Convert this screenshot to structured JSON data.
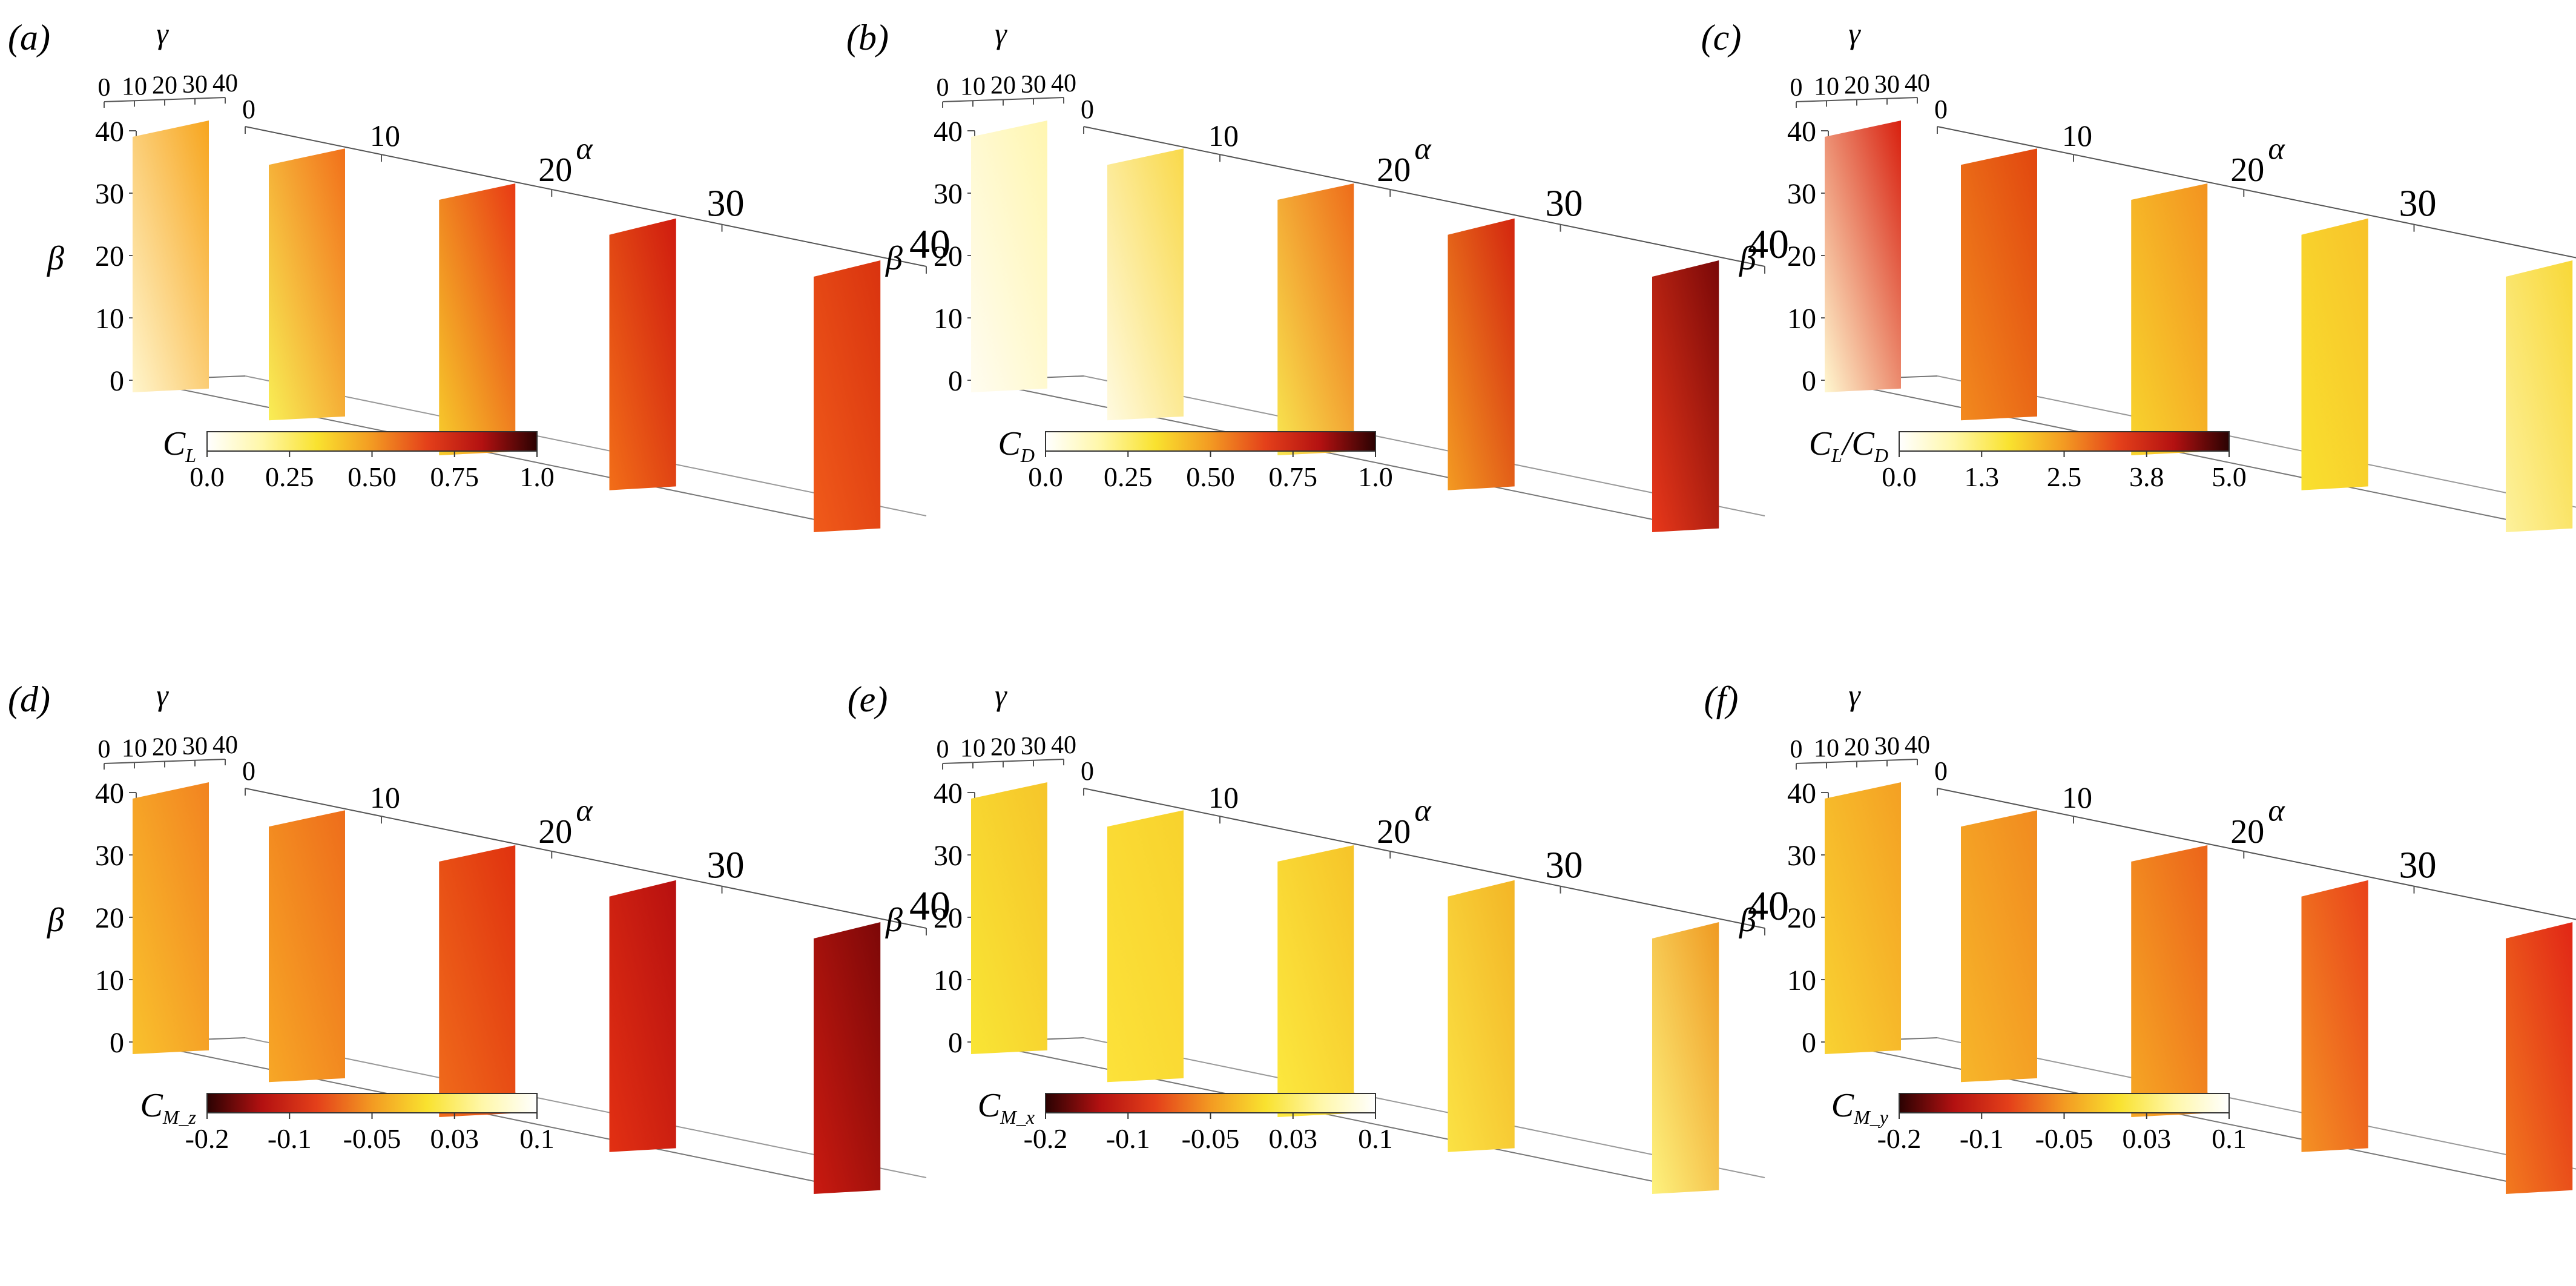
{
  "chart_data": [
    {
      "type": "heatmap",
      "panel_label": "(a)",
      "title": "",
      "gamma_axis": {
        "label": "γ",
        "ticks": [
          "0",
          "10",
          "20",
          "30",
          "40"
        ]
      },
      "alpha_axis": {
        "label": "α",
        "ticks": [
          "0",
          "10",
          "20",
          "30",
          "40"
        ]
      },
      "beta_axis": {
        "label": "β",
        "ticks": [
          "0",
          "10",
          "20",
          "30",
          "40"
        ]
      },
      "alpha_slices": [
        0,
        10,
        20,
        30,
        40
      ],
      "slice_gradient": [
        [
          "#fff5cc",
          "#f7a51e"
        ],
        [
          "#f8ee55",
          "#f2701a"
        ],
        [
          "#f7cd2c",
          "#e83a14"
        ],
        [
          "#f26e18",
          "#cf1b0f"
        ],
        [
          "#f05b1a",
          "#d9330f"
        ]
      ],
      "colorbar": {
        "label": "C",
        "label_sub": "L",
        "ticks": [
          "0.0",
          "0.25",
          "0.50",
          "0.75",
          "1.0"
        ],
        "range": [
          0,
          1.0
        ],
        "reversed": false
      },
      "ylim": [
        0,
        40
      ]
    },
    {
      "type": "heatmap",
      "panel_label": "(b)",
      "title": "",
      "gamma_axis": {
        "label": "γ",
        "ticks": [
          "0",
          "10",
          "20",
          "30",
          "40"
        ]
      },
      "alpha_axis": {
        "label": "α",
        "ticks": [
          "0",
          "10",
          "20",
          "30",
          "40"
        ]
      },
      "beta_axis": {
        "label": "β",
        "ticks": [
          "0",
          "10",
          "20",
          "30",
          "40"
        ]
      },
      "alpha_slices": [
        0,
        10,
        20,
        30,
        40
      ],
      "slice_gradient": [
        [
          "#fffcf0",
          "#fff6b0"
        ],
        [
          "#fffae0",
          "#f9d94a"
        ],
        [
          "#f8e650",
          "#ee6c1a"
        ],
        [
          "#f39a22",
          "#d3250f"
        ],
        [
          "#e8381a",
          "#7a0808"
        ]
      ],
      "colorbar": {
        "label": "C",
        "label_sub": "D",
        "ticks": [
          "0.0",
          "0.25",
          "0.50",
          "0.75",
          "1.0"
        ],
        "range": [
          0,
          1.0
        ],
        "reversed": false
      },
      "ylim": [
        0,
        40
      ]
    },
    {
      "type": "heatmap",
      "panel_label": "(c)",
      "title": "",
      "gamma_axis": {
        "label": "γ",
        "ticks": [
          "0",
          "10",
          "20",
          "30",
          "40"
        ]
      },
      "alpha_axis": {
        "label": "α",
        "ticks": [
          "0",
          "10",
          "20",
          "30",
          "40"
        ]
      },
      "beta_axis": {
        "label": "β",
        "ticks": [
          "0",
          "10",
          "20",
          "30",
          "40"
        ]
      },
      "alpha_slices": [
        0,
        10,
        20,
        30,
        40
      ],
      "slice_gradient": [
        [
          "#fff8d0",
          "#d8200f"
        ],
        [
          "#f28a1e",
          "#e1460f"
        ],
        [
          "#f8d42e",
          "#f39320"
        ],
        [
          "#f9e02f",
          "#f8c22a"
        ],
        [
          "#fdf19c",
          "#f8d838"
        ]
      ],
      "colorbar": {
        "label": "C",
        "label_sub": "L",
        "label2": "/C",
        "label2_sub": "D",
        "ticks": [
          "0.0",
          "1.3",
          "2.5",
          "3.8",
          "5.0"
        ],
        "range": [
          0,
          5.0
        ],
        "reversed": false
      },
      "ylim": [
        0,
        40
      ]
    },
    {
      "type": "heatmap",
      "panel_label": "(d)",
      "title": "",
      "gamma_axis": {
        "label": "γ",
        "ticks": [
          "0",
          "10",
          "20",
          "30",
          "40"
        ]
      },
      "alpha_axis": {
        "label": "α",
        "ticks": [
          "0",
          "10",
          "20",
          "30",
          "40"
        ]
      },
      "beta_axis": {
        "label": "β",
        "ticks": [
          "0",
          "10",
          "20",
          "30",
          "40"
        ]
      },
      "alpha_slices": [
        0,
        10,
        20,
        30,
        40
      ],
      "slice_gradient": [
        [
          "#f9c12d",
          "#f28320"
        ],
        [
          "#f7a726",
          "#ee6d1b"
        ],
        [
          "#f06c1b",
          "#e0320f"
        ],
        [
          "#e23012",
          "#b71010"
        ],
        [
          "#c91a10",
          "#7d0808"
        ]
      ],
      "colorbar": {
        "label": "C",
        "label_sub": "M_z",
        "ticks": [
          "-0.2",
          "-0.1",
          "-0.05",
          "0.03",
          "0.1"
        ],
        "range": [
          -0.2,
          0.1
        ],
        "reversed": true
      },
      "ylim": [
        0,
        40
      ]
    },
    {
      "type": "heatmap",
      "panel_label": "(e)",
      "title": "",
      "gamma_axis": {
        "label": "γ",
        "ticks": [
          "0",
          "10",
          "20",
          "30",
          "40"
        ]
      },
      "alpha_axis": {
        "label": "α",
        "ticks": [
          "0",
          "10",
          "20",
          "30",
          "40"
        ]
      },
      "beta_axis": {
        "label": "β",
        "ticks": [
          "0",
          "10",
          "20",
          "30",
          "40"
        ]
      },
      "alpha_slices": [
        0,
        10,
        20,
        30,
        40
      ],
      "slice_gradient": [
        [
          "#f9e535",
          "#f6c52a"
        ],
        [
          "#fce23a",
          "#f8d22d"
        ],
        [
          "#fce93f",
          "#f6c429"
        ],
        [
          "#fbe244",
          "#f3b526"
        ],
        [
          "#fdf27e",
          "#ef9a22"
        ]
      ],
      "colorbar": {
        "label": "C",
        "label_sub": "M_x",
        "ticks": [
          "-0.2",
          "-0.1",
          "-0.05",
          "0.03",
          "0.1"
        ],
        "range": [
          -0.2,
          0.1
        ],
        "reversed": true
      },
      "ylim": [
        0,
        40
      ]
    },
    {
      "type": "heatmap",
      "panel_label": "(f)",
      "title": "",
      "gamma_axis": {
        "label": "γ",
        "ticks": [
          "0",
          "10",
          "20",
          "30",
          "40"
        ]
      },
      "alpha_axis": {
        "label": "α",
        "ticks": [
          "0",
          "10",
          "20",
          "30",
          "40"
        ]
      },
      "beta_axis": {
        "label": "β",
        "ticks": [
          "0",
          "10",
          "20",
          "30",
          "40"
        ]
      },
      "alpha_slices": [
        0,
        10,
        20,
        30,
        40
      ],
      "slice_gradient": [
        [
          "#f9d232",
          "#f4a023"
        ],
        [
          "#f7b62a",
          "#f18a1f"
        ],
        [
          "#f6a825",
          "#ec641a"
        ],
        [
          "#f49224",
          "#e9421a"
        ],
        [
          "#f27a1f",
          "#e12616"
        ]
      ],
      "colorbar": {
        "label": "C",
        "label_sub": "M_y",
        "ticks": [
          "-0.2",
          "-0.1",
          "-0.05",
          "0.03",
          "0.1"
        ],
        "range": [
          -0.2,
          0.1
        ],
        "reversed": true
      },
      "ylim": [
        0,
        40
      ]
    }
  ],
  "colormap": {
    "hot_forward": [
      "#ffffff",
      "#fff7a8",
      "#f9e22f",
      "#f39a22",
      "#e4401a",
      "#b31111",
      "#2a0202"
    ],
    "hot_reversed": [
      "#2a0202",
      "#b31111",
      "#e4401a",
      "#f39a22",
      "#f9e22f",
      "#fff7a8",
      "#ffffff"
    ]
  }
}
